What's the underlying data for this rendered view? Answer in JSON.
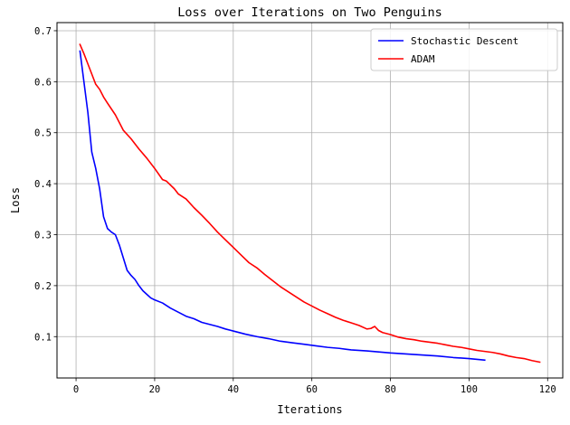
{
  "chart_data": {
    "type": "line",
    "title": "Loss over Iterations on Two Penguins",
    "xlabel": "Iterations",
    "ylabel": "Loss",
    "xlim": [
      -4.85,
      123.85
    ],
    "ylim": [
      0.0189,
      0.7159
    ],
    "xticks": [
      0,
      20,
      40,
      60,
      80,
      100,
      120
    ],
    "yticks": [
      0.1,
      0.2,
      0.3,
      0.4,
      0.5,
      0.6,
      0.7
    ],
    "grid": true,
    "legend": "top-right",
    "series": [
      {
        "name": "Stochastic Descent",
        "color": "#0000ff",
        "x": [
          1,
          2,
          3,
          4,
          5,
          6,
          7,
          8,
          9,
          10,
          11,
          12,
          13,
          14,
          15,
          16,
          17,
          18,
          19,
          20,
          22,
          24,
          26,
          28,
          30,
          32,
          34,
          36,
          38,
          40,
          43,
          46,
          49,
          52,
          55,
          58,
          61,
          64,
          67,
          70,
          74,
          77,
          80,
          84,
          88,
          92,
          96,
          100,
          104
        ],
        "y": [
          0.66,
          0.6,
          0.54,
          0.462,
          0.43,
          0.39,
          0.335,
          0.312,
          0.305,
          0.3,
          0.28,
          0.255,
          0.23,
          0.22,
          0.212,
          0.2,
          0.19,
          0.183,
          0.176,
          0.172,
          0.166,
          0.156,
          0.148,
          0.14,
          0.135,
          0.128,
          0.124,
          0.12,
          0.115,
          0.111,
          0.105,
          0.1,
          0.096,
          0.091,
          0.088,
          0.085,
          0.082,
          0.079,
          0.077,
          0.074,
          0.072,
          0.07,
          0.068,
          0.066,
          0.064,
          0.062,
          0.059,
          0.057,
          0.054
        ]
      },
      {
        "name": "ADAM",
        "color": "#ff0000",
        "x": [
          1,
          2,
          3,
          4,
          5,
          6,
          7,
          8,
          10,
          12,
          14,
          16,
          18,
          20,
          22,
          23,
          25,
          26,
          28,
          30,
          32,
          34,
          36,
          38,
          40,
          42,
          44,
          46,
          48,
          50,
          52,
          54,
          56,
          58,
          60,
          62,
          64,
          66,
          68,
          70,
          72,
          74,
          75,
          76,
          77,
          78,
          80,
          82,
          84,
          86,
          88,
          90,
          92,
          94,
          96,
          98,
          100,
          102,
          104,
          106,
          108,
          110,
          112,
          114,
          116,
          118
        ],
        "y": [
          0.673,
          0.655,
          0.635,
          0.615,
          0.595,
          0.585,
          0.57,
          0.558,
          0.535,
          0.505,
          0.488,
          0.468,
          0.45,
          0.43,
          0.408,
          0.405,
          0.39,
          0.38,
          0.37,
          0.353,
          0.338,
          0.322,
          0.305,
          0.29,
          0.275,
          0.26,
          0.245,
          0.235,
          0.222,
          0.21,
          0.198,
          0.188,
          0.178,
          0.168,
          0.16,
          0.152,
          0.145,
          0.138,
          0.132,
          0.127,
          0.122,
          0.115,
          0.116,
          0.12,
          0.112,
          0.108,
          0.104,
          0.099,
          0.096,
          0.094,
          0.091,
          0.089,
          0.087,
          0.084,
          0.081,
          0.079,
          0.076,
          0.073,
          0.071,
          0.069,
          0.066,
          0.062,
          0.059,
          0.057,
          0.053,
          0.05
        ]
      }
    ]
  }
}
